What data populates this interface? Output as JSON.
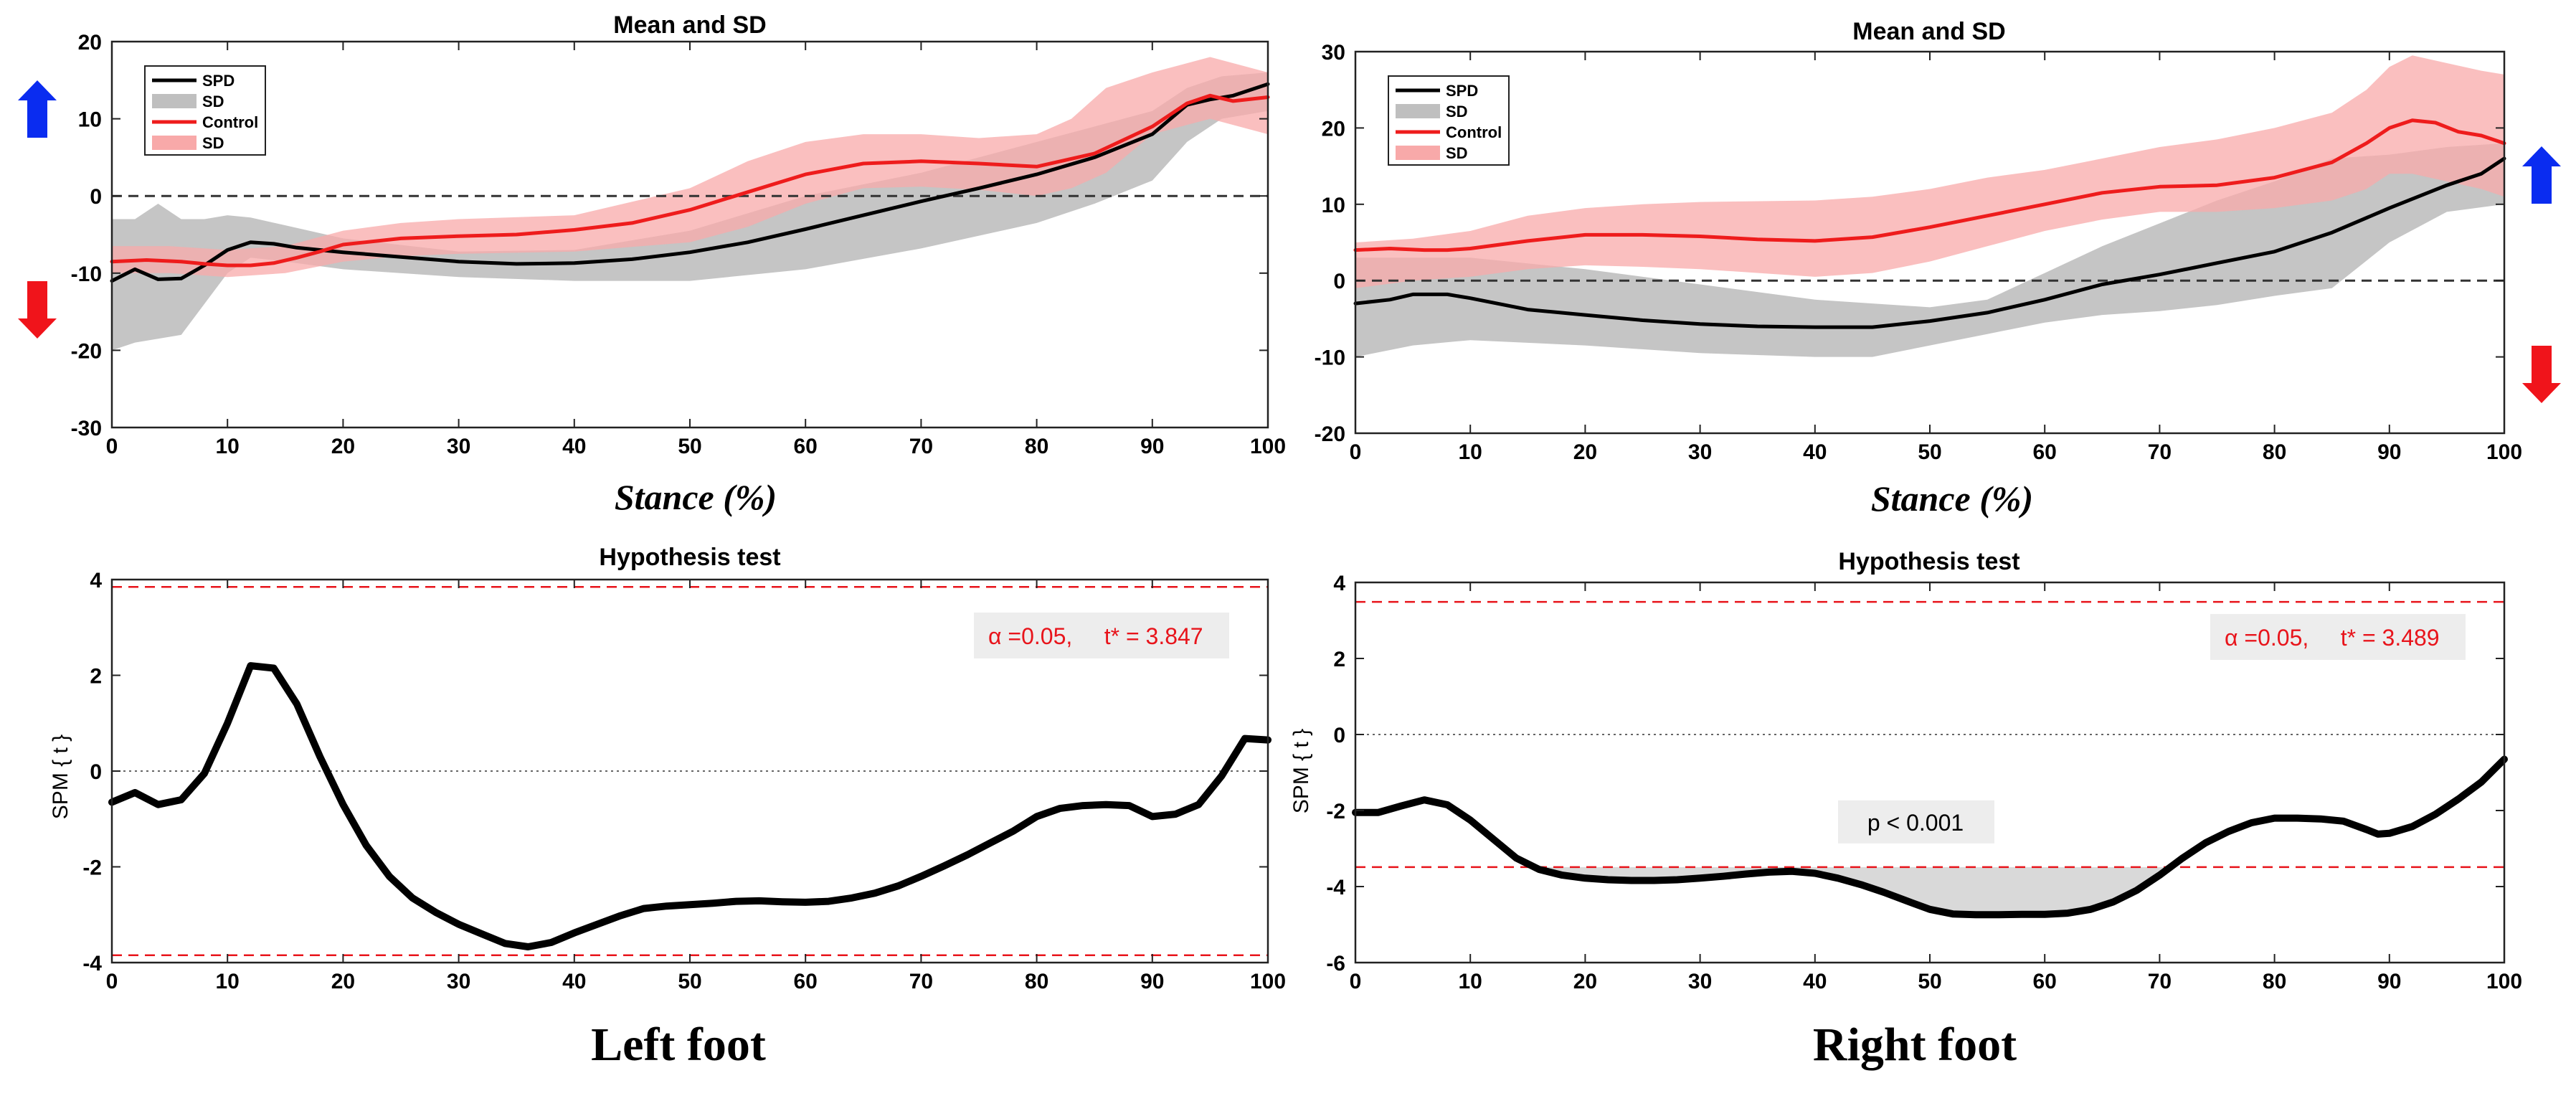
{
  "colors": {
    "spd": "#000000",
    "spd_sd": "#bfbfbf",
    "control": "#ee1c1c",
    "control_sd": "#f8a9a9",
    "threshold": "#e8141b",
    "arrow_blue": "#0a2cf0",
    "arrow_red": "#f0141b",
    "annotation_bg": "#ededed",
    "cluster_fill": "#d9d9d9"
  },
  "icons": {
    "up": "blue-up-arrow-icon",
    "down": "red-down-arrow-icon"
  },
  "captions": {
    "left": "Left foot",
    "right": "Right foot"
  },
  "chart_data": [
    {
      "id": "left-mean",
      "type": "line",
      "title": "Mean and SD",
      "xlabel": "Stance (%)",
      "ylabel": "",
      "xlim": [
        0,
        100
      ],
      "ylim": [
        -30,
        20
      ],
      "xticks": [
        0,
        10,
        20,
        30,
        40,
        50,
        60,
        70,
        80,
        90,
        100
      ],
      "yticks": [
        -30,
        -20,
        -10,
        0,
        10,
        20
      ],
      "reference_line": 0,
      "legend": {
        "position": "top-left",
        "entries": [
          "SPD",
          "SD",
          "Control",
          "SD"
        ]
      },
      "series": [
        {
          "name": "SPD",
          "role": "mean",
          "x": [
            0,
            2,
            4,
            6,
            8,
            10,
            12,
            14,
            16,
            20,
            25,
            30,
            35,
            40,
            45,
            50,
            55,
            60,
            65,
            70,
            75,
            80,
            85,
            90,
            93,
            95,
            97,
            100
          ],
          "y": [
            -11,
            -9.5,
            -10.8,
            -10.7,
            -9,
            -7,
            -6,
            -6.2,
            -6.7,
            -7.3,
            -7.9,
            -8.5,
            -8.8,
            -8.7,
            -8.2,
            -7.3,
            -6,
            -4.3,
            -2.5,
            -0.7,
            1,
            2.8,
            5,
            8,
            11.8,
            12.5,
            13,
            14.5
          ]
        },
        {
          "name": "SD",
          "role": "band",
          "of": "SPD",
          "x": [
            0,
            2,
            4,
            6,
            8,
            10,
            12,
            15,
            20,
            30,
            40,
            50,
            60,
            70,
            80,
            85,
            90,
            93,
            96,
            100
          ],
          "lower": [
            -20,
            -19,
            -18.5,
            -18,
            -14,
            -10,
            -8,
            -8.5,
            -9.5,
            -10.5,
            -11,
            -11,
            -9.5,
            -6.8,
            -3.5,
            -1,
            2,
            7,
            10,
            11
          ],
          "upper": [
            -3,
            -3,
            -1,
            -3,
            -3,
            -2.5,
            -2.8,
            -3.8,
            -5.5,
            -7.2,
            -7,
            -4.5,
            0,
            3,
            7,
            9,
            11,
            14,
            15.5,
            16
          ]
        },
        {
          "name": "Control",
          "role": "mean",
          "x": [
            0,
            3,
            6,
            8,
            10,
            12,
            14,
            16,
            18,
            20,
            25,
            30,
            35,
            40,
            45,
            50,
            55,
            60,
            65,
            70,
            75,
            80,
            85,
            90,
            93,
            95,
            97,
            100
          ],
          "y": [
            -8.5,
            -8.3,
            -8.5,
            -8.8,
            -9,
            -9,
            -8.7,
            -8,
            -7.2,
            -6.3,
            -5.5,
            -5.2,
            -5,
            -4.4,
            -3.5,
            -1.8,
            0.5,
            2.8,
            4.2,
            4.5,
            4.2,
            3.8,
            5.5,
            9,
            12,
            13,
            12.3,
            12.8
          ]
        },
        {
          "name": "SD",
          "role": "band",
          "of": "Control",
          "x": [
            0,
            5,
            10,
            15,
            20,
            25,
            30,
            40,
            50,
            55,
            60,
            65,
            70,
            75,
            80,
            83,
            86,
            90,
            95,
            100
          ],
          "lower": [
            -10,
            -10,
            -10.5,
            -10,
            -8.5,
            -7.8,
            -7.5,
            -7.2,
            -6,
            -4,
            -1,
            1,
            1.2,
            0.8,
            0,
            1,
            3,
            8,
            10,
            8
          ],
          "upper": [
            -6.5,
            -6.5,
            -7,
            -6.5,
            -4.5,
            -3.5,
            -3,
            -2.5,
            1,
            4.5,
            7,
            8,
            8,
            7.5,
            8,
            10,
            14,
            16,
            18,
            16
          ]
        }
      ]
    },
    {
      "id": "right-mean",
      "type": "line",
      "title": "Mean and SD",
      "xlabel": "Stance (%)",
      "ylabel": "",
      "xlim": [
        0,
        100
      ],
      "ylim": [
        -20,
        30
      ],
      "xticks": [
        0,
        10,
        20,
        30,
        40,
        50,
        60,
        70,
        80,
        90,
        100
      ],
      "yticks": [
        -20,
        -10,
        0,
        10,
        20,
        30
      ],
      "reference_line": 0,
      "legend": {
        "position": "top-left",
        "entries": [
          "SPD",
          "SD",
          "Control",
          "SD"
        ]
      },
      "series": [
        {
          "name": "SPD",
          "role": "mean",
          "x": [
            0,
            3,
            5,
            8,
            10,
            15,
            20,
            25,
            30,
            35,
            40,
            45,
            50,
            55,
            60,
            65,
            70,
            75,
            80,
            85,
            90,
            95,
            98,
            100
          ],
          "y": [
            -3,
            -2.5,
            -1.8,
            -1.8,
            -2.3,
            -3.8,
            -4.5,
            -5.2,
            -5.7,
            -6,
            -6.1,
            -6.1,
            -5.3,
            -4.2,
            -2.5,
            -0.5,
            0.8,
            2.3,
            3.8,
            6.3,
            9.5,
            12.5,
            14,
            16
          ]
        },
        {
          "name": "SD",
          "role": "band",
          "of": "SPD",
          "x": [
            0,
            5,
            10,
            20,
            30,
            40,
            45,
            50,
            55,
            60,
            65,
            70,
            75,
            80,
            85,
            90,
            95,
            100
          ],
          "lower": [
            -10,
            -8.5,
            -7.8,
            -8.5,
            -9.5,
            -10,
            -10,
            -8.5,
            -7,
            -5.5,
            -4.5,
            -4,
            -3.2,
            -2,
            -1,
            5,
            9,
            10
          ],
          "upper": [
            3,
            3,
            3,
            1.5,
            -0.5,
            -2.5,
            -3,
            -3.5,
            -2.5,
            1,
            4.5,
            7.5,
            10.5,
            13,
            16,
            16.5,
            17.5,
            18
          ]
        },
        {
          "name": "Control",
          "role": "mean",
          "x": [
            0,
            3,
            6,
            8,
            10,
            15,
            20,
            25,
            30,
            35,
            40,
            45,
            50,
            55,
            60,
            65,
            70,
            75,
            80,
            85,
            88,
            90,
            92,
            94,
            96,
            98,
            100
          ],
          "y": [
            4,
            4.2,
            4,
            4,
            4.2,
            5.2,
            6,
            6,
            5.8,
            5.4,
            5.2,
            5.7,
            7,
            8.5,
            10,
            11.5,
            12.3,
            12.5,
            13.5,
            15.5,
            18,
            20,
            21,
            20.7,
            19.5,
            19,
            18
          ]
        },
        {
          "name": "SD",
          "role": "band",
          "of": "Control",
          "x": [
            0,
            5,
            10,
            15,
            20,
            25,
            30,
            40,
            45,
            50,
            55,
            60,
            65,
            70,
            75,
            80,
            85,
            88,
            90,
            92,
            95,
            98,
            100
          ],
          "lower": [
            -1,
            0,
            0.5,
            1.5,
            2,
            1.8,
            1.5,
            0.5,
            1,
            2.5,
            4.5,
            6.5,
            8,
            9,
            9,
            9.5,
            10.5,
            12,
            14,
            14,
            13,
            12,
            11
          ],
          "upper": [
            5,
            5.5,
            6.5,
            8.5,
            9.5,
            10,
            10.3,
            10.5,
            11,
            12,
            13.5,
            14.5,
            16,
            17.5,
            18.5,
            20,
            22,
            25,
            28,
            29.5,
            28.5,
            27.5,
            27
          ]
        }
      ]
    },
    {
      "id": "left-spm",
      "type": "line",
      "title": "Hypothesis test",
      "xlabel": "",
      "ylabel": "SPM { t }",
      "xlim": [
        0,
        100
      ],
      "ylim": [
        -4,
        4
      ],
      "xticks": [
        0,
        10,
        20,
        30,
        40,
        50,
        60,
        70,
        80,
        90,
        100
      ],
      "yticks": [
        -4,
        -2,
        0,
        2,
        4
      ],
      "reference_line": 0,
      "threshold": 3.847,
      "annotation": "α =0.05,     t* = 3.847",
      "series": [
        {
          "name": "",
          "role": "spm",
          "x": [
            0,
            2,
            4,
            6,
            8,
            10,
            12,
            14,
            16,
            18,
            20,
            22,
            24,
            26,
            28,
            30,
            32,
            34,
            36,
            38,
            40,
            42,
            44,
            46,
            48,
            50,
            52,
            54,
            56,
            58,
            60,
            62,
            64,
            66,
            68,
            70,
            72,
            74,
            76,
            78,
            80,
            82,
            84,
            86,
            88,
            90,
            92,
            94,
            96,
            98,
            100
          ],
          "y": [
            -0.65,
            -0.45,
            -0.7,
            -0.6,
            -0.05,
            1.0,
            2.2,
            2.15,
            1.4,
            0.3,
            -0.7,
            -1.55,
            -2.2,
            -2.65,
            -2.95,
            -3.2,
            -3.4,
            -3.6,
            -3.67,
            -3.58,
            -3.38,
            -3.2,
            -3.02,
            -2.87,
            -2.82,
            -2.79,
            -2.76,
            -2.72,
            -2.71,
            -2.73,
            -2.74,
            -2.72,
            -2.65,
            -2.55,
            -2.4,
            -2.2,
            -1.98,
            -1.75,
            -1.5,
            -1.25,
            -0.95,
            -0.78,
            -0.72,
            -0.7,
            -0.72,
            -0.95,
            -0.9,
            -0.7,
            -0.1,
            0.68,
            0.65
          ]
        }
      ]
    },
    {
      "id": "right-spm",
      "type": "line",
      "title": "Hypothesis test",
      "xlabel": "",
      "ylabel": "SPM { t }",
      "xlim": [
        0,
        100
      ],
      "ylim": [
        -6,
        4
      ],
      "xticks": [
        0,
        10,
        20,
        30,
        40,
        50,
        60,
        70,
        80,
        90,
        100
      ],
      "yticks": [
        -6,
        -4,
        -2,
        0,
        2,
        4
      ],
      "reference_line": 0,
      "threshold": 3.489,
      "annotation": "α =0.05,     t* = 3.489",
      "cluster_label": "p < 0.001",
      "series": [
        {
          "name": "",
          "role": "spm",
          "x": [
            0,
            2,
            4,
            6,
            8,
            10,
            12,
            14,
            16,
            18,
            20,
            22,
            24,
            26,
            28,
            30,
            32,
            34,
            36,
            38,
            40,
            42,
            44,
            46,
            48,
            50,
            52,
            54,
            56,
            58,
            60,
            62,
            64,
            66,
            68,
            70,
            72,
            74,
            76,
            78,
            80,
            82,
            84,
            86,
            88,
            89,
            90,
            92,
            94,
            96,
            98,
            100
          ],
          "y": [
            -2.05,
            -2.05,
            -1.88,
            -1.72,
            -1.85,
            -2.25,
            -2.75,
            -3.25,
            -3.55,
            -3.7,
            -3.78,
            -3.82,
            -3.84,
            -3.84,
            -3.82,
            -3.78,
            -3.73,
            -3.67,
            -3.62,
            -3.6,
            -3.65,
            -3.78,
            -3.95,
            -4.15,
            -4.38,
            -4.6,
            -4.72,
            -4.74,
            -4.74,
            -4.73,
            -4.73,
            -4.7,
            -4.6,
            -4.4,
            -4.1,
            -3.7,
            -3.25,
            -2.85,
            -2.55,
            -2.32,
            -2.2,
            -2.2,
            -2.22,
            -2.28,
            -2.5,
            -2.62,
            -2.6,
            -2.42,
            -2.1,
            -1.7,
            -1.25,
            -0.65
          ]
        }
      ]
    }
  ]
}
